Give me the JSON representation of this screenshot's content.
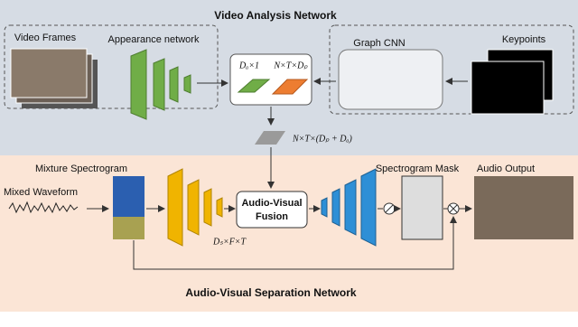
{
  "top_section": {
    "title": "Video Analysis Network",
    "video_frames": "Video Frames",
    "appearance_network": "Appearance network",
    "graph_cnn": "Graph CNN",
    "keypoints": "Keypoints",
    "appearance_feature": "Dₐ×1",
    "pose_feature": "N×T×Dₚ",
    "combined_feature": "N×T×(Dₚ + Dₐ)"
  },
  "bottom_section": {
    "title": "Audio-Visual Separation Network",
    "mixed_waveform": "Mixed Waveform",
    "mixture_spectrogram": "Mixture Spectrogram",
    "spectrogram_mask": "Spectrogram Mask",
    "audio_output": "Audio Output",
    "fusion": [
      "Audio-Visual",
      "Fusion"
    ],
    "audio_feature": "Dₛ×F×T"
  }
}
